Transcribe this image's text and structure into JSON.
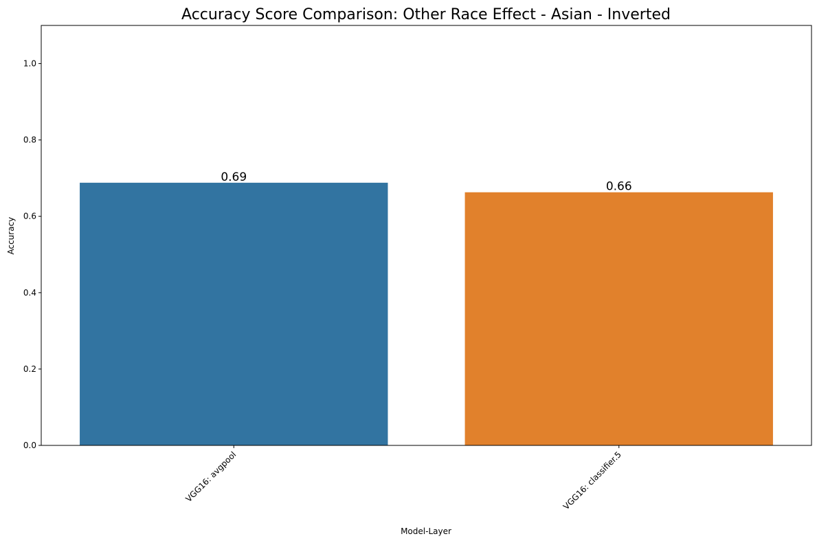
{
  "chart_data": {
    "type": "bar",
    "title": "Accuracy Score Comparison: Other Race Effect - Asian - Inverted",
    "xlabel": "Model-Layer",
    "ylabel": "Accuracy",
    "categories": [
      "VGG16: avgpool",
      "VGG16: classifier.5"
    ],
    "values": [
      0.688,
      0.663
    ],
    "data_labels": [
      "0.69",
      "0.66"
    ],
    "colors": [
      "#3274a1",
      "#e1812c"
    ],
    "ylim": [
      0,
      1.1
    ],
    "yticks": [
      0.0,
      0.2,
      0.4,
      0.6,
      0.8,
      1.0
    ],
    "ytick_labels": [
      "0.0",
      "0.2",
      "0.4",
      "0.6",
      "0.8",
      "1.0"
    ],
    "grid": false,
    "legend": "none"
  }
}
